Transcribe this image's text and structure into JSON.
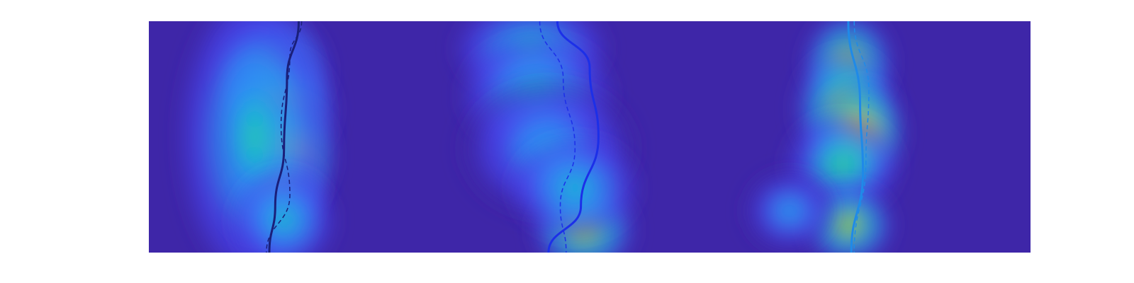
{
  "chart_data": {
    "type": "heatmap",
    "title": "",
    "xlabel": "",
    "ylabel": "",
    "axes_visible": false,
    "ticks_visible": false,
    "colormap": "parula",
    "colormap_stops": [
      "#3e26a8",
      "#4745f0",
      "#2f8bf6",
      "#18b6d8",
      "#2dc5a6",
      "#8cc63e",
      "#e7b82f",
      "#fadf21",
      "#f9fb0e"
    ],
    "background_color": "#3e26a8",
    "panels": 3,
    "hotspots": [
      {
        "panel": 1,
        "x": 0.42,
        "y": 0.22,
        "intensity": 0.62,
        "sx": 0.09,
        "sy": 0.12
      },
      {
        "panel": 1,
        "x": 0.44,
        "y": 0.38,
        "intensity": 0.72,
        "sx": 0.09,
        "sy": 0.12
      },
      {
        "panel": 1,
        "x": 0.46,
        "y": 0.58,
        "intensity": 1.0,
        "sx": 0.08,
        "sy": 0.12
      },
      {
        "panel": 1,
        "x": 0.44,
        "y": 0.72,
        "intensity": 0.8,
        "sx": 0.07,
        "sy": 0.08
      },
      {
        "panel": 1,
        "x": 0.36,
        "y": 0.5,
        "intensity": 0.45,
        "sx": 0.12,
        "sy": 0.3
      },
      {
        "panel": 1,
        "x": 0.46,
        "y": 0.86,
        "intensity": 0.45,
        "sx": 0.08,
        "sy": 0.1
      },
      {
        "panel": 2,
        "x": 0.3,
        "y": 0.12,
        "intensity": 0.45,
        "sx": 0.12,
        "sy": 0.1
      },
      {
        "panel": 2,
        "x": 0.32,
        "y": 0.32,
        "intensity": 0.4,
        "sx": 0.12,
        "sy": 0.12
      },
      {
        "panel": 2,
        "x": 0.36,
        "y": 0.55,
        "intensity": 0.35,
        "sx": 0.14,
        "sy": 0.14
      },
      {
        "panel": 2,
        "x": 0.48,
        "y": 0.9,
        "intensity": 0.75,
        "sx": 0.08,
        "sy": 0.09
      },
      {
        "panel": 2,
        "x": 0.45,
        "y": 0.72,
        "intensity": 0.4,
        "sx": 0.1,
        "sy": 0.1
      },
      {
        "panel": 3,
        "x": 0.38,
        "y": 0.18,
        "intensity": 0.7,
        "sx": 0.07,
        "sy": 0.1
      },
      {
        "panel": 3,
        "x": 0.37,
        "y": 0.38,
        "intensity": 0.78,
        "sx": 0.08,
        "sy": 0.12
      },
      {
        "panel": 3,
        "x": 0.42,
        "y": 0.48,
        "intensity": 0.95,
        "sx": 0.07,
        "sy": 0.1
      },
      {
        "panel": 3,
        "x": 0.36,
        "y": 0.62,
        "intensity": 0.55,
        "sx": 0.09,
        "sy": 0.1
      },
      {
        "panel": 3,
        "x": 0.38,
        "y": 0.88,
        "intensity": 0.8,
        "sx": 0.07,
        "sy": 0.08
      },
      {
        "panel": 3,
        "x": 0.18,
        "y": 0.82,
        "intensity": 0.35,
        "sx": 0.07,
        "sy": 0.08
      }
    ],
    "curves": [
      {
        "panel": 1,
        "style": "solid",
        "color": "#1a1f7a",
        "points": [
          [
            0.51,
            0.0
          ],
          [
            0.47,
            0.25
          ],
          [
            0.46,
            0.55
          ],
          [
            0.43,
            0.8
          ],
          [
            0.41,
            1.0
          ]
        ]
      },
      {
        "panel": 1,
        "style": "dashed",
        "color": "#1a1f7a",
        "points": [
          [
            0.52,
            0.0
          ],
          [
            0.48,
            0.15
          ],
          [
            0.45,
            0.45
          ],
          [
            0.48,
            0.75
          ],
          [
            0.4,
            1.0
          ]
        ]
      },
      {
        "panel": 2,
        "style": "solid",
        "color": "#1c2fe8",
        "points": [
          [
            0.39,
            0.0
          ],
          [
            0.5,
            0.2
          ],
          [
            0.53,
            0.5
          ],
          [
            0.47,
            0.8
          ],
          [
            0.36,
            1.0
          ]
        ]
      },
      {
        "panel": 2,
        "style": "dashed",
        "color": "#1c2fe8",
        "points": [
          [
            0.33,
            0.0
          ],
          [
            0.41,
            0.25
          ],
          [
            0.45,
            0.55
          ],
          [
            0.4,
            0.8
          ],
          [
            0.42,
            1.0
          ]
        ]
      },
      {
        "panel": 3,
        "style": "solid",
        "color": "#1f8ae8",
        "points": [
          [
            0.38,
            0.0
          ],
          [
            0.42,
            0.35
          ],
          [
            0.43,
            0.65
          ],
          [
            0.39,
            1.0
          ]
        ]
      },
      {
        "panel": 3,
        "style": "dashed",
        "color": "#1f8ae8",
        "points": [
          [
            0.4,
            0.0
          ],
          [
            0.45,
            0.3
          ],
          [
            0.44,
            0.6
          ],
          [
            0.4,
            1.0
          ]
        ]
      }
    ]
  }
}
